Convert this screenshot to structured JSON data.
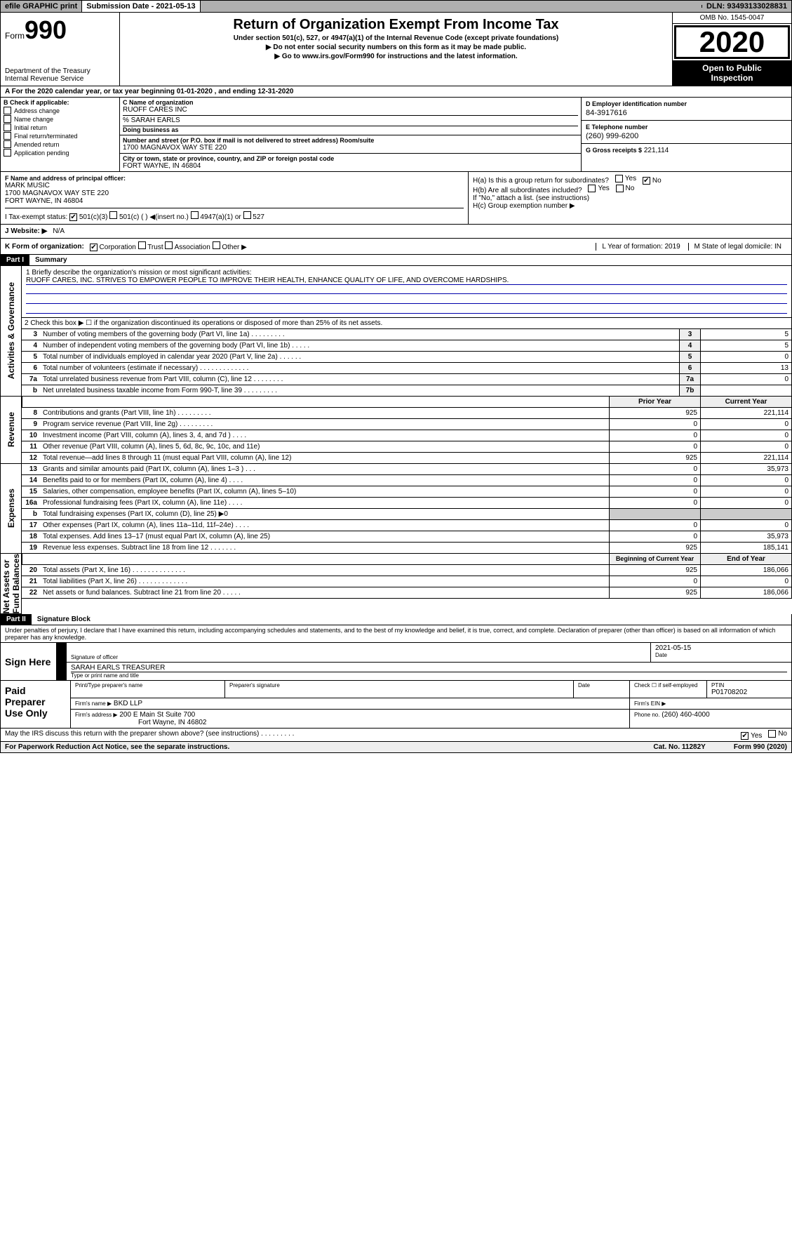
{
  "topbar": {
    "efile": "efile GRAPHIC print",
    "sub_label": "Submission Date - 2021-05-13",
    "dln": "DLN: 93493133028831"
  },
  "header": {
    "form_prefix": "Form",
    "form_number": "990",
    "title": "Return of Organization Exempt From Income Tax",
    "subtitle": "Under section 501(c), 527, or 4947(a)(1) of the Internal Revenue Code (except private foundations)",
    "warn": "▶ Do not enter social security numbers on this form as it may be made public.",
    "goto": "▶ Go to www.irs.gov/Form990 for instructions and the latest information.",
    "dept": "Department of the Treasury\nInternal Revenue Service",
    "omb": "OMB No. 1545-0047",
    "year": "2020",
    "open": "Open to Public\nInspection"
  },
  "lineA": "A  For the 2020 calendar year, or tax year beginning 01-01-2020    , and ending 12-31-2020",
  "colB": {
    "title": "B Check if applicable:",
    "items": [
      "Address change",
      "Name change",
      "Initial return",
      "Final return/terminated",
      "Amended return",
      "Application pending"
    ]
  },
  "colC": {
    "nameLbl": "C Name of organization",
    "name": "RUOFF CARES INC",
    "care": "% SARAH EARLS",
    "dba_lbl": "Doing business as",
    "addr_lbl": "Number and street (or P.O. box if mail is not delivered to street address)        Room/suite",
    "addr": "1700 MAGNAVOX WAY STE 220",
    "city_lbl": "City or town, state or province, country, and ZIP or foreign postal code",
    "city": "FORT WAYNE, IN  46804"
  },
  "colD": {
    "ein_lbl": "D Employer identification number",
    "ein": "84-3917616",
    "tel_lbl": "E Telephone number",
    "tel": "(260) 999-6200",
    "gr_lbl": "G Gross receipts $",
    "gr": "221,114"
  },
  "fh": {
    "f_lbl": "F Name and address of principal officer:",
    "f_name": "MARK MUSIC",
    "f_addr1": "1700 MAGNAVOX WAY STE 220",
    "f_addr2": "FORT WAYNE, IN  46804",
    "ha": "H(a)  Is this a group return for subordinates?",
    "hb": "H(b)  Are all subordinates included?",
    "hb_note": "If \"No,\" attach a list. (see instructions)",
    "hc": "H(c)  Group exemption number ▶"
  },
  "rowI": {
    "lbl": "I   Tax-exempt status:",
    "opts": [
      "501(c)(3)",
      "501(c) (  ) ◀(insert no.)",
      "4947(a)(1) or",
      "527"
    ]
  },
  "rowJ": {
    "lbl": "J   Website: ▶",
    "val": "N/A"
  },
  "rowK": {
    "lbl": "K Form of organization:",
    "opts": [
      "Corporation",
      "Trust",
      "Association",
      "Other ▶"
    ],
    "l": "L Year of formation: 2019",
    "m": "M State of legal domicile: IN"
  },
  "part1": {
    "label": "Part I",
    "title": "Summary"
  },
  "part2": {
    "label": "Part II",
    "title": "Signature Block"
  },
  "summary": {
    "l1_lbl": "1   Briefly describe the organization's mission or most significant activities:",
    "l1_val": "RUOFF CARES, INC. STRIVES TO EMPOWER PEOPLE TO IMPROVE THEIR HEALTH, ENHANCE QUALITY OF LIFE, AND OVERCOME HARDSHIPS.",
    "l2": "2   Check this box ▶ ☐  if the organization discontinued its operations or disposed of more than 25% of its net assets.",
    "rows_gov": [
      {
        "n": "3",
        "d": "Number of voting members of the governing body (Part VI, line 1a)  .   .   .   .   .   .   .   .   .",
        "cn": "3",
        "v": "5"
      },
      {
        "n": "4",
        "d": "Number of independent voting members of the governing body (Part VI, line 1b)  .   .   .   .   .",
        "cn": "4",
        "v": "5"
      },
      {
        "n": "5",
        "d": "Total number of individuals employed in calendar year 2020 (Part V, line 2a)  .   .   .   .   .   .",
        "cn": "5",
        "v": "0"
      },
      {
        "n": "6",
        "d": "Total number of volunteers (estimate if necessary)  .   .   .   .   .   .   .   .   .   .   .   .   .",
        "cn": "6",
        "v": "13"
      },
      {
        "n": "7a",
        "d": "Total unrelated business revenue from Part VIII, column (C), line 12  .   .   .   .   .   .   .   .",
        "cn": "7a",
        "v": "0"
      },
      {
        "n": "b",
        "d": "Net unrelated business taxable income from Form 990-T, line 39  .   .   .   .   .   .   .   .   .",
        "cn": "7b",
        "v": ""
      }
    ],
    "col_hdr": {
      "c1": "Prior Year",
      "c2": "Current Year"
    },
    "rows_rev": [
      {
        "n": "8",
        "d": "Contributions and grants (Part VIII, line 1h)  .   .   .   .   .   .   .   .   .",
        "c1": "925",
        "c2": "221,114"
      },
      {
        "n": "9",
        "d": "Program service revenue (Part VIII, line 2g)  .   .   .   .   .   .   .   .   .",
        "c1": "0",
        "c2": "0"
      },
      {
        "n": "10",
        "d": "Investment income (Part VIII, column (A), lines 3, 4, and 7d )  .   .   .   .",
        "c1": "0",
        "c2": "0"
      },
      {
        "n": "11",
        "d": "Other revenue (Part VIII, column (A), lines 5, 6d, 8c, 9c, 10c, and 11e)",
        "c1": "0",
        "c2": "0"
      },
      {
        "n": "12",
        "d": "Total revenue—add lines 8 through 11 (must equal Part VIII, column (A), line 12)",
        "c1": "925",
        "c2": "221,114"
      }
    ],
    "rows_exp": [
      {
        "n": "13",
        "d": "Grants and similar amounts paid (Part IX, column (A), lines 1–3 )  .   .   .",
        "c1": "0",
        "c2": "35,973"
      },
      {
        "n": "14",
        "d": "Benefits paid to or for members (Part IX, column (A), line 4)  .   .   .   .",
        "c1": "0",
        "c2": "0"
      },
      {
        "n": "15",
        "d": "Salaries, other compensation, employee benefits (Part IX, column (A), lines 5–10)",
        "c1": "0",
        "c2": "0"
      },
      {
        "n": "16a",
        "d": "Professional fundraising fees (Part IX, column (A), line 11e)  .   .   .   .",
        "c1": "0",
        "c2": "0"
      },
      {
        "n": "b",
        "d": "Total fundraising expenses (Part IX, column (D), line 25) ▶0",
        "c1": "shade",
        "c2": "shade"
      },
      {
        "n": "17",
        "d": "Other expenses (Part IX, column (A), lines 11a–11d, 11f–24e)  .   .   .   .",
        "c1": "0",
        "c2": "0"
      },
      {
        "n": "18",
        "d": "Total expenses. Add lines 13–17 (must equal Part IX, column (A), line 25)",
        "c1": "0",
        "c2": "35,973"
      },
      {
        "n": "19",
        "d": "Revenue less expenses. Subtract line 18 from line 12  .   .   .   .   .   .   .",
        "c1": "925",
        "c2": "185,141"
      }
    ],
    "col_hdr2": {
      "c1": "Beginning of Current Year",
      "c2": "End of Year"
    },
    "rows_net": [
      {
        "n": "20",
        "d": "Total assets (Part X, line 16)  .   .   .   .   .   .   .   .   .   .   .   .   .   .",
        "c1": "925",
        "c2": "186,066"
      },
      {
        "n": "21",
        "d": "Total liabilities (Part X, line 26)  .   .   .   .   .   .   .   .   .   .   .   .   .",
        "c1": "0",
        "c2": "0"
      },
      {
        "n": "22",
        "d": "Net assets or fund balances. Subtract line 21 from line 20  .   .   .   .   .",
        "c1": "925",
        "c2": "186,066"
      }
    ],
    "sidelabels": {
      "gov": "Activities & Governance",
      "rev": "Revenue",
      "exp": "Expenses",
      "net": "Net Assets or\nFund Balances"
    }
  },
  "perjury": "Under penalties of perjury, I declare that I have examined this return, including accompanying schedules and statements, and to the best of my knowledge and belief, it is true, correct, and complete. Declaration of preparer (other than officer) is based on all information of which preparer has any knowledge.",
  "sign": {
    "here": "Sign Here",
    "sig_lbl": "Signature of officer",
    "date": "2021-05-15",
    "date_lbl": "Date",
    "name": "SARAH EARLS  TREASURER",
    "name_lbl": "Type or print name and title"
  },
  "prep": {
    "title": "Paid Preparer Use Only",
    "pt_lbl": "Print/Type preparer's name",
    "sig_lbl": "Preparer's signature",
    "date_lbl": "Date",
    "self_lbl": "Check ☐ if self-employed",
    "ptin_lbl": "PTIN",
    "ptin": "P01708202",
    "firm_name_lbl": "Firm's name    ▶",
    "firm_name": "BKD LLP",
    "firm_ein_lbl": "Firm's EIN ▶",
    "firm_addr_lbl": "Firm's address ▶",
    "firm_addr1": "200 E Main St Suite 700",
    "firm_addr2": "Fort Wayne, IN  46802",
    "phone_lbl": "Phone no.",
    "phone": "(260) 460-4000"
  },
  "discuss": "May the IRS discuss this return with the preparer shown above? (see instructions)  .   .   .   .   .   .   .   .   .",
  "footer": {
    "pra": "For Paperwork Reduction Act Notice, see the separate instructions.",
    "cat": "Cat. No. 11282Y",
    "form": "Form 990 (2020)"
  }
}
